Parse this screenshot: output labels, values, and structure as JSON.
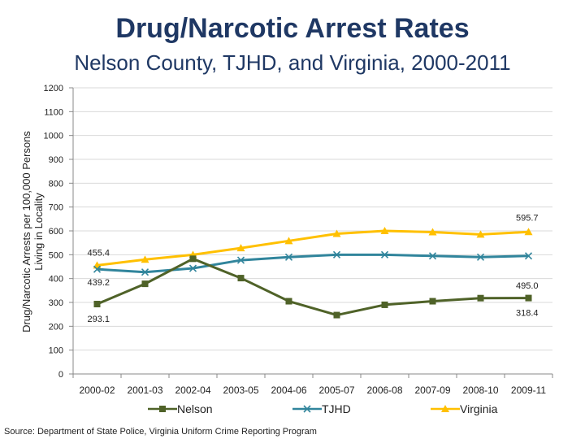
{
  "chart_data": {
    "type": "line",
    "title": "Drug/Narcotic Arrest Rates",
    "subtitle": "Nelson County, TJHD, and Virginia, 2000-2011",
    "ylabel_line1": "Drug/Narcotic Arrests per 100,000 Persons",
    "ylabel_line2": "Living in Locality",
    "xlabel": "",
    "ylim": [
      0,
      1200
    ],
    "yticks": [
      0,
      100,
      200,
      300,
      400,
      500,
      600,
      700,
      800,
      900,
      1000,
      1100,
      1200
    ],
    "categories": [
      "2000-02",
      "2001-03",
      "2002-04",
      "2003-05",
      "2004-06",
      "2005-07",
      "2006-08",
      "2007-09",
      "2008-10",
      "2009-11"
    ],
    "legend_position": "bottom",
    "series": [
      {
        "name": "Nelson",
        "color": "#4f6228",
        "marker": "square",
        "values": [
          293.1,
          378,
          483,
          402,
          305,
          247,
          290,
          305,
          318,
          318.4
        ],
        "labels": [
          {
            "index": 0,
            "text": "293.1"
          },
          {
            "index": 9,
            "text": "318.4"
          }
        ]
      },
      {
        "name": "TJHD",
        "color": "#31859c",
        "marker": "x",
        "values": [
          439.2,
          427,
          443,
          477,
          490,
          500,
          500,
          495,
          490,
          495.0
        ],
        "labels": [
          {
            "index": 0,
            "text": "439.2"
          },
          {
            "index": 9,
            "text": "495.0"
          }
        ]
      },
      {
        "name": "Virginia",
        "color": "#ffc000",
        "marker": "triangle",
        "values": [
          455.4,
          480,
          500,
          528,
          558,
          588,
          600,
          595,
          585,
          595.7
        ],
        "labels": [
          {
            "index": 0,
            "text": "455.4"
          },
          {
            "index": 9,
            "text": "595.7"
          }
        ]
      }
    ],
    "source": "Source: Department of State Police, Virginia Uniform Crime Reporting Program"
  }
}
